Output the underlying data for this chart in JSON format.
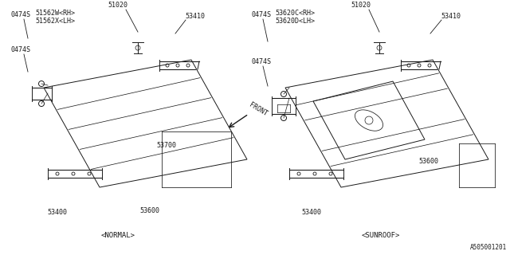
{
  "bg_color": "#ffffff",
  "line_color": "#1a1a1a",
  "watermark": "A505001201",
  "left_label": "<NORMAL>",
  "right_label": "<SUNROOF>",
  "front_label": "FRONT"
}
